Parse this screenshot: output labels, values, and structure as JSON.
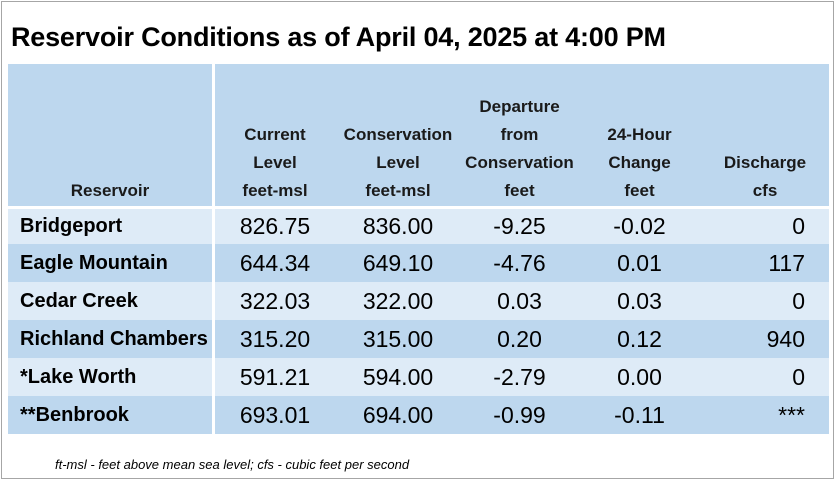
{
  "title": "Reservoir Conditions as of April 04, 2025 at 4:00 PM",
  "columns": [
    {
      "lines": [
        "Reservoir"
      ]
    },
    {
      "lines": [
        "Current",
        "Level",
        "feet-msl"
      ]
    },
    {
      "lines": [
        "Conservation",
        "Level",
        "feet-msl"
      ]
    },
    {
      "lines": [
        "Departure",
        "from",
        "Conservation",
        "feet"
      ]
    },
    {
      "lines": [
        "24-Hour",
        "Change",
        "feet"
      ]
    },
    {
      "lines": [
        "Discharge",
        "cfs"
      ]
    }
  ],
  "rows": [
    {
      "name": "Bridgeport",
      "current": "826.75",
      "conservation": "836.00",
      "departure": "-9.25",
      "change": "-0.02",
      "discharge": "0"
    },
    {
      "name": "Eagle Mountain",
      "current": "644.34",
      "conservation": "649.10",
      "departure": "-4.76",
      "change": "0.01",
      "discharge": "117"
    },
    {
      "name": "Cedar Creek",
      "current": "322.03",
      "conservation": "322.00",
      "departure": "0.03",
      "change": "0.03",
      "discharge": "0"
    },
    {
      "name": "Richland Chambers",
      "current": "315.20",
      "conservation": "315.00",
      "departure": "0.20",
      "change": "0.12",
      "discharge": "940"
    },
    {
      "name": "*Lake Worth",
      "current": "591.21",
      "conservation": "594.00",
      "departure": "-2.79",
      "change": "0.00",
      "discharge": "0"
    },
    {
      "name": "**Benbrook",
      "current": "693.01",
      "conservation": "694.00",
      "departure": "-0.99",
      "change": "-0.11",
      "discharge": "***"
    }
  ],
  "footnote": "ft-msl - feet above mean sea level; cfs - cubic feet per second"
}
